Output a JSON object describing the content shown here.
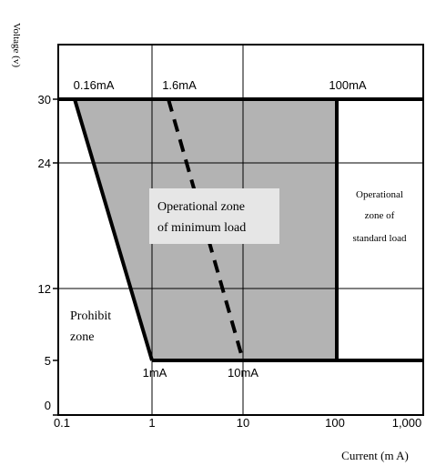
{
  "diagram": {
    "y_axis_title": "Voltage (v)",
    "x_axis_title": "Current (m A)",
    "y_ticks": [
      "30",
      "24",
      "12",
      "5",
      "0"
    ],
    "x_ticks": [
      "0.1",
      "1",
      "10",
      "100",
      "1,000"
    ],
    "top_labels": [
      "0.16mA",
      "1.6mA",
      "100mA"
    ],
    "bottom_labels": [
      "1mA",
      "10mA"
    ],
    "zone_minimum_load": [
      "Operational zone",
      "of minimum load"
    ],
    "zone_standard_load": [
      "Operational",
      "zone of",
      "standard load"
    ],
    "zone_prohibit": [
      "Prohibit",
      "zone"
    ],
    "colors": {
      "shaded_zone": "#b3b3b3",
      "label_box": "#e6e6e6",
      "lines": "#000000",
      "background": "#ffffff"
    }
  }
}
